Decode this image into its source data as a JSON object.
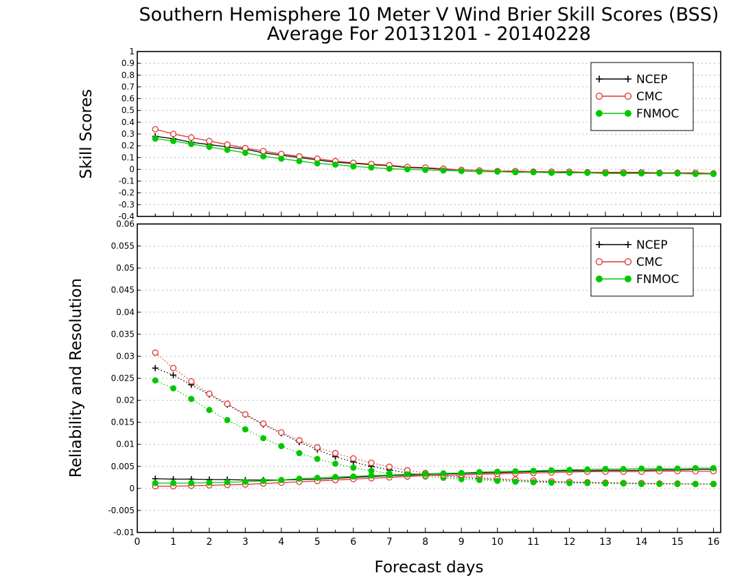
{
  "title_line1": "Southern Hemisphere 10 Meter V Wind Brier Skill Scores (BSS)",
  "title_line2": "Average For 20131201 - 20140228",
  "xlabel": "Forecast days",
  "chart_data": [
    {
      "type": "line",
      "ylabel": "Skill Scores",
      "xlim": [
        0,
        16.2
      ],
      "ylim": [
        -0.4,
        1
      ],
      "x_ticks": [
        0,
        1,
        2,
        3,
        4,
        5,
        6,
        7,
        8,
        9,
        10,
        11,
        12,
        13,
        14,
        15,
        16
      ],
      "y_ticks": [
        -0.4,
        -0.3,
        -0.2,
        -0.1,
        0,
        0.1,
        0.2,
        0.3,
        0.4,
        0.5,
        0.6,
        0.7,
        0.8,
        0.9,
        1
      ],
      "grid": true,
      "legend": "top-right",
      "x": [
        0.5,
        1,
        1.5,
        2,
        2.5,
        3,
        3.5,
        4,
        4.5,
        5,
        5.5,
        6,
        6.5,
        7,
        7.5,
        8,
        8.5,
        9,
        9.5,
        10,
        10.5,
        11,
        11.5,
        12,
        12.5,
        13,
        13.5,
        14,
        14.5,
        15,
        15.5,
        16
      ],
      "series": [
        {
          "name": "NCEP",
          "color": "#000000",
          "marker": "plus",
          "style": "solid",
          "values": [
            0.28,
            0.26,
            0.23,
            0.21,
            0.19,
            0.17,
            0.14,
            0.12,
            0.1,
            0.08,
            0.06,
            0.05,
            0.04,
            0.03,
            0.015,
            0.01,
            0.0,
            -0.005,
            -0.01,
            -0.015,
            -0.02,
            -0.02,
            -0.02,
            -0.025,
            -0.025,
            -0.03,
            -0.03,
            -0.03,
            -0.03,
            -0.035,
            -0.035,
            -0.035
          ]
        },
        {
          "name": "CMC",
          "color": "#e03030",
          "marker": "open-circle",
          "style": "solid",
          "values": [
            0.34,
            0.3,
            0.27,
            0.24,
            0.21,
            0.18,
            0.155,
            0.13,
            0.11,
            0.09,
            0.07,
            0.055,
            0.045,
            0.035,
            0.02,
            0.015,
            0.005,
            -0.005,
            -0.01,
            -0.015,
            -0.015,
            -0.02,
            -0.02,
            -0.02,
            -0.025,
            -0.025,
            -0.025,
            -0.025,
            -0.03,
            -0.03,
            -0.03,
            -0.035
          ]
        },
        {
          "name": "FNMOC",
          "color": "#00c800",
          "marker": "filled-circle",
          "style": "solid",
          "values": [
            0.26,
            0.24,
            0.215,
            0.19,
            0.165,
            0.14,
            0.11,
            0.09,
            0.07,
            0.05,
            0.04,
            0.025,
            0.015,
            0.005,
            0.0,
            -0.005,
            -0.01,
            -0.015,
            -0.02,
            -0.02,
            -0.025,
            -0.025,
            -0.03,
            -0.03,
            -0.03,
            -0.035,
            -0.035,
            -0.035,
            -0.035,
            -0.035,
            -0.04,
            -0.04
          ]
        }
      ]
    },
    {
      "type": "line",
      "ylabel": "Reliability and Resolution",
      "xlim": [
        0,
        16.2
      ],
      "ylim": [
        -0.01,
        0.06
      ],
      "x_ticks": [
        0,
        1,
        2,
        3,
        4,
        5,
        6,
        7,
        8,
        9,
        10,
        11,
        12,
        13,
        14,
        15,
        16
      ],
      "y_ticks": [
        -0.01,
        -0.005,
        0,
        0.005,
        0.01,
        0.015,
        0.02,
        0.025,
        0.03,
        0.035,
        0.04,
        0.045,
        0.05,
        0.055,
        0.06
      ],
      "y_tick_labels": [
        "-0.01",
        "-0.005",
        "0",
        "0.005",
        "0.01",
        "0.015",
        "0.02",
        "0.025",
        "0.03",
        "0.035",
        "0.04",
        "0.045",
        "0.05",
        "0.055",
        "0.06"
      ],
      "grid": true,
      "legend": "top-right",
      "x": [
        0.5,
        1,
        1.5,
        2,
        2.5,
        3,
        3.5,
        4,
        4.5,
        5,
        5.5,
        6,
        6.5,
        7,
        7.5,
        8,
        8.5,
        9,
        9.5,
        10,
        10.5,
        11,
        11.5,
        12,
        12.5,
        13,
        13.5,
        14,
        14.5,
        15,
        15.5,
        16
      ],
      "series": [
        {
          "name": "NCEP",
          "color": "#000000",
          "marker": "plus",
          "style": "dotted",
          "values": [
            0.0273,
            0.0257,
            0.0235,
            0.0213,
            0.019,
            0.0167,
            0.0145,
            0.0125,
            0.0105,
            0.0088,
            0.0072,
            0.006,
            0.005,
            0.0042,
            0.0035,
            0.003,
            0.0028,
            0.0025,
            0.0022,
            0.002,
            0.0018,
            0.0016,
            0.0015,
            0.0014,
            0.0013,
            0.0012,
            0.0012,
            0.0011,
            0.0011,
            0.001,
            0.001,
            0.001
          ]
        },
        {
          "name": "CMC",
          "color": "#e03030",
          "marker": "open-circle",
          "style": "dotted",
          "values": [
            0.0308,
            0.0273,
            0.0243,
            0.0215,
            0.0192,
            0.0168,
            0.0147,
            0.0127,
            0.0109,
            0.0093,
            0.008,
            0.0068,
            0.0058,
            0.0049,
            0.0041,
            0.0035,
            0.0031,
            0.0028,
            0.0025,
            0.0022,
            0.002,
            0.0018,
            0.0016,
            0.0015,
            0.0014,
            0.0013,
            0.0012,
            0.0012,
            0.0011,
            0.0011,
            0.001,
            0.001
          ]
        },
        {
          "name": "FNMOC",
          "color": "#00c800",
          "marker": "filled-circle",
          "style": "dotted",
          "values": [
            0.0245,
            0.0227,
            0.0203,
            0.0178,
            0.0155,
            0.0134,
            0.0114,
            0.0096,
            0.008,
            0.0067,
            0.0056,
            0.0047,
            0.004,
            0.0034,
            0.003,
            0.0027,
            0.0024,
            0.0021,
            0.0019,
            0.0017,
            0.0015,
            0.0014,
            0.0013,
            0.0012,
            0.0012,
            0.0011,
            0.0011,
            0.001,
            0.001,
            0.001,
            0.001,
            0.001
          ]
        },
        {
          "name": "NCEP",
          "color": "#000000",
          "marker": "plus",
          "style": "solid",
          "values": [
            0.0022,
            0.0021,
            0.0021,
            0.002,
            0.002,
            0.0019,
            0.0019,
            0.0019,
            0.002,
            0.0021,
            0.0023,
            0.0025,
            0.0027,
            0.0029,
            0.003,
            0.0032,
            0.0033,
            0.0034,
            0.0035,
            0.0036,
            0.0037,
            0.0038,
            0.0039,
            0.004,
            0.004,
            0.0041,
            0.0041,
            0.0041,
            0.0042,
            0.0042,
            0.0043,
            0.0043
          ]
        },
        {
          "name": "CMC",
          "color": "#e03030",
          "marker": "open-circle",
          "style": "solid",
          "values": [
            0.0005,
            0.0005,
            0.0006,
            0.0007,
            0.0008,
            0.0009,
            0.0011,
            0.0013,
            0.0015,
            0.0017,
            0.0019,
            0.0021,
            0.0023,
            0.0025,
            0.0027,
            0.0029,
            0.003,
            0.0031,
            0.0032,
            0.0033,
            0.0034,
            0.0035,
            0.0036,
            0.0037,
            0.0038,
            0.0038,
            0.0038,
            0.0038,
            0.0039,
            0.0039,
            0.0039,
            0.0039
          ]
        },
        {
          "name": "FNMOC",
          "color": "#00c800",
          "marker": "filled-circle",
          "style": "solid",
          "values": [
            0.0012,
            0.0012,
            0.0012,
            0.0013,
            0.0014,
            0.0015,
            0.0017,
            0.0019,
            0.0022,
            0.0024,
            0.0026,
            0.0027,
            0.0029,
            0.003,
            0.0032,
            0.0033,
            0.0034,
            0.0035,
            0.0037,
            0.0038,
            0.0039,
            0.004,
            0.0041,
            0.0042,
            0.0043,
            0.0044,
            0.0044,
            0.0045,
            0.0045,
            0.0045,
            0.0046,
            0.0046
          ]
        }
      ]
    }
  ]
}
